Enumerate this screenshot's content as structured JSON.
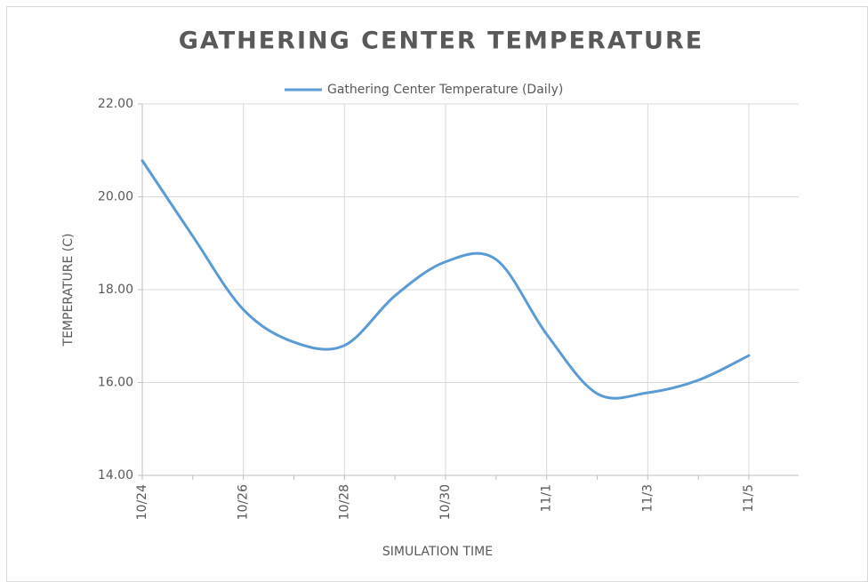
{
  "chart_data": {
    "type": "line",
    "title": "GATHERING CENTER TEMPERATURE",
    "x_label": "SIMULATION TIME",
    "y_label": "TEMPERATURE (C)",
    "categories": [
      "10/24",
      null,
      "10/26",
      null,
      "10/28",
      null,
      "10/30",
      null,
      "11/1",
      null,
      "11/3",
      null,
      "11/5"
    ],
    "series": [
      {
        "name": "Gathering Center Temperature (Daily)",
        "color": "#5b9bd5",
        "values": [
          20.78,
          19.15,
          17.57,
          16.87,
          16.8,
          17.87,
          18.6,
          18.65,
          17.04,
          15.76,
          15.78,
          16.05,
          16.58
        ]
      }
    ],
    "ylim": [
      14,
      22
    ],
    "yticks": [
      {
        "value": 14,
        "label": "14.00"
      },
      {
        "value": 16,
        "label": "16.00"
      },
      {
        "value": 18,
        "label": "18.00"
      },
      {
        "value": 20,
        "label": "20.00"
      },
      {
        "value": 22,
        "label": "22.00"
      }
    ],
    "grid": true,
    "smooth": true,
    "legend": "top"
  }
}
